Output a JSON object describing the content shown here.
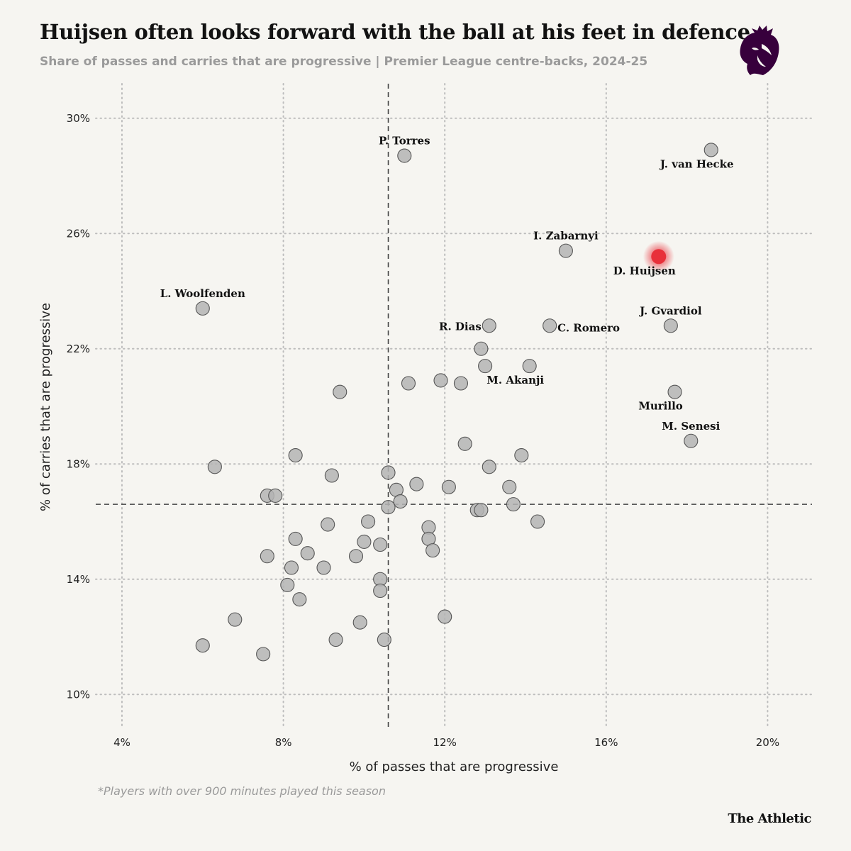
{
  "header": {
    "title": "Huijsen often looks forward with the ball at his feet in defence",
    "subtitle": "Share of passes and carries that are progressive | Premier League centre-backs, 2024-25"
  },
  "footer": {
    "footnote": "*Players with over 900 minutes played this season",
    "brand": "The Athletic"
  },
  "logo": {
    "icon": "premier-league-lion-icon",
    "color": "#37003c"
  },
  "chart_data": {
    "type": "scatter",
    "title": "Huijsen often looks forward with the ball at his feet in defence",
    "xlabel": "% of passes that are progressive",
    "ylabel": "% of carries that are progressive",
    "xlim": [
      3.35,
      21.1
    ],
    "ylim": [
      8.8,
      31.2
    ],
    "x_ticks": [
      4,
      8,
      12,
      16,
      20
    ],
    "y_ticks": [
      10,
      14,
      18,
      22,
      26,
      30
    ],
    "x_tick_labels": [
      "4%",
      "8%",
      "12%",
      "16%",
      "20%"
    ],
    "y_tick_labels": [
      "10%",
      "14%",
      "18%",
      "22%",
      "26%",
      "30%"
    ],
    "grid": true,
    "reference_lines": {
      "x_median": 10.6,
      "y_median": 16.6
    },
    "colors": {
      "default_point": "#b4b4b4",
      "highlight_point": "#e8303a",
      "point_stroke": "#555555"
    },
    "highlight": "D. Huijsen",
    "points": [
      {
        "x": 18.6,
        "y": 28.9,
        "label": "J. van Hecke",
        "label_pos": "below"
      },
      {
        "x": 11.0,
        "y": 28.7,
        "label": "P. Torres",
        "label_pos": "above"
      },
      {
        "x": 15.0,
        "y": 25.4,
        "label": "I. Zabarnyi",
        "label_pos": "above"
      },
      {
        "x": 17.3,
        "y": 25.2,
        "label": "D. Huijsen",
        "label_pos": "below"
      },
      {
        "x": 6.0,
        "y": 23.4,
        "label": "L. Woolfenden",
        "label_pos": "above"
      },
      {
        "x": 17.6,
        "y": 22.8,
        "label": "J. Gvardiol",
        "label_pos": "above"
      },
      {
        "x": 13.1,
        "y": 22.8,
        "label": "R. Dias",
        "label_pos": "left"
      },
      {
        "x": 14.6,
        "y": 22.8,
        "label": "C. Romero",
        "label_pos": "right"
      },
      {
        "x": 14.1,
        "y": 21.4,
        "label": "M. Akanji",
        "label_pos": "below"
      },
      {
        "x": 17.7,
        "y": 20.5,
        "label": "Murillo",
        "label_pos": "below"
      },
      {
        "x": 18.1,
        "y": 18.8,
        "label": "M. Senesi",
        "label_pos": "above"
      },
      {
        "x": 12.9,
        "y": 22.0,
        "label": ""
      },
      {
        "x": 13.0,
        "y": 21.4,
        "label": ""
      },
      {
        "x": 11.1,
        "y": 20.8,
        "label": ""
      },
      {
        "x": 11.9,
        "y": 20.9,
        "label": ""
      },
      {
        "x": 12.4,
        "y": 20.8,
        "label": ""
      },
      {
        "x": 9.4,
        "y": 20.5,
        "label": ""
      },
      {
        "x": 12.5,
        "y": 18.7,
        "label": ""
      },
      {
        "x": 13.9,
        "y": 18.3,
        "label": ""
      },
      {
        "x": 8.3,
        "y": 18.3,
        "label": ""
      },
      {
        "x": 6.3,
        "y": 17.9,
        "label": ""
      },
      {
        "x": 13.1,
        "y": 17.9,
        "label": ""
      },
      {
        "x": 9.2,
        "y": 17.6,
        "label": ""
      },
      {
        "x": 10.6,
        "y": 17.7,
        "label": ""
      },
      {
        "x": 11.3,
        "y": 17.3,
        "label": ""
      },
      {
        "x": 12.1,
        "y": 17.2,
        "label": ""
      },
      {
        "x": 13.6,
        "y": 17.2,
        "label": ""
      },
      {
        "x": 10.8,
        "y": 17.1,
        "label": ""
      },
      {
        "x": 7.6,
        "y": 16.9,
        "label": ""
      },
      {
        "x": 7.8,
        "y": 16.9,
        "label": ""
      },
      {
        "x": 10.9,
        "y": 16.7,
        "label": ""
      },
      {
        "x": 10.6,
        "y": 16.5,
        "label": ""
      },
      {
        "x": 13.7,
        "y": 16.6,
        "label": ""
      },
      {
        "x": 12.8,
        "y": 16.4,
        "label": ""
      },
      {
        "x": 12.9,
        "y": 16.4,
        "label": ""
      },
      {
        "x": 10.1,
        "y": 16.0,
        "label": ""
      },
      {
        "x": 14.3,
        "y": 16.0,
        "label": ""
      },
      {
        "x": 9.1,
        "y": 15.9,
        "label": ""
      },
      {
        "x": 11.6,
        "y": 15.8,
        "label": ""
      },
      {
        "x": 8.3,
        "y": 15.4,
        "label": ""
      },
      {
        "x": 11.6,
        "y": 15.4,
        "label": ""
      },
      {
        "x": 10.0,
        "y": 15.3,
        "label": ""
      },
      {
        "x": 10.4,
        "y": 15.2,
        "label": ""
      },
      {
        "x": 11.7,
        "y": 15.0,
        "label": ""
      },
      {
        "x": 8.6,
        "y": 14.9,
        "label": ""
      },
      {
        "x": 7.6,
        "y": 14.8,
        "label": ""
      },
      {
        "x": 9.8,
        "y": 14.8,
        "label": ""
      },
      {
        "x": 8.2,
        "y": 14.4,
        "label": ""
      },
      {
        "x": 9.0,
        "y": 14.4,
        "label": ""
      },
      {
        "x": 10.4,
        "y": 14.0,
        "label": ""
      },
      {
        "x": 8.1,
        "y": 13.8,
        "label": ""
      },
      {
        "x": 10.4,
        "y": 13.6,
        "label": ""
      },
      {
        "x": 8.4,
        "y": 13.3,
        "label": ""
      },
      {
        "x": 6.8,
        "y": 12.6,
        "label": ""
      },
      {
        "x": 12.0,
        "y": 12.7,
        "label": ""
      },
      {
        "x": 9.9,
        "y": 12.5,
        "label": ""
      },
      {
        "x": 9.3,
        "y": 11.9,
        "label": ""
      },
      {
        "x": 10.5,
        "y": 11.9,
        "label": ""
      },
      {
        "x": 6.0,
        "y": 11.7,
        "label": ""
      },
      {
        "x": 7.5,
        "y": 11.4,
        "label": ""
      }
    ]
  }
}
